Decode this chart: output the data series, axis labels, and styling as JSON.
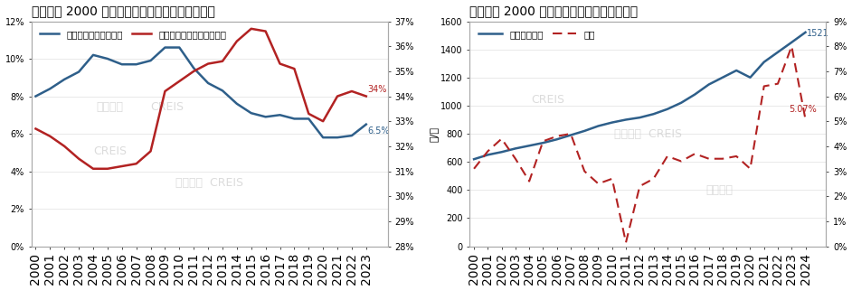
{
  "chart1": {
    "title": "图：美国 2000 年以来租赁住房空置率及租赁占比",
    "years": [
      2000,
      2001,
      2002,
      2003,
      2004,
      2005,
      2006,
      2007,
      2008,
      2009,
      2010,
      2011,
      2012,
      2013,
      2014,
      2015,
      2016,
      2017,
      2018,
      2019,
      2020,
      2021,
      2022,
      2023
    ],
    "vacancy": [
      8.0,
      8.4,
      8.9,
      9.3,
      10.2,
      10.0,
      9.7,
      9.7,
      9.9,
      10.6,
      10.6,
      9.5,
      8.7,
      8.3,
      7.6,
      7.1,
      6.9,
      7.0,
      6.8,
      6.8,
      5.8,
      5.8,
      5.9,
      6.5
    ],
    "ratio": [
      32.7,
      32.4,
      32.0,
      31.5,
      31.1,
      31.1,
      31.2,
      31.3,
      31.8,
      34.2,
      34.6,
      35.0,
      35.3,
      35.4,
      36.2,
      36.7,
      36.6,
      35.3,
      35.1,
      33.3,
      33.0,
      34.0,
      34.2,
      34.0
    ],
    "vacancy_color": "#2e5f8a",
    "ratio_color": "#b22222",
    "annotation_vacancy": "6.5%",
    "annotation_ratio": "34%",
    "legend1": "租赁住房空置率（左）",
    "legend2": "租赁住房占住宅比例（右）"
  },
  "chart2": {
    "title": "图：美国 2000 年以来住房租赁租金平均价格",
    "years": [
      2000,
      2001,
      2002,
      2003,
      2004,
      2005,
      2006,
      2007,
      2008,
      2009,
      2010,
      2011,
      2012,
      2013,
      2014,
      2015,
      2016,
      2017,
      2018,
      2019,
      2020,
      2021,
      2022,
      2023,
      2024
    ],
    "price": [
      619,
      650,
      670,
      695,
      715,
      735,
      760,
      790,
      820,
      855,
      880,
      900,
      915,
      940,
      975,
      1020,
      1080,
      1150,
      1200,
      1250,
      1200,
      1310,
      1380,
      1450,
      1521
    ],
    "growth": [
      3.1,
      3.8,
      4.3,
      3.5,
      2.6,
      4.2,
      4.4,
      4.5,
      3.0,
      2.5,
      2.7,
      0.15,
      2.4,
      2.7,
      3.6,
      3.4,
      3.7,
      3.5,
      3.5,
      3.6,
      3.1,
      6.4,
      6.5,
      8.0,
      5.07
    ],
    "price_color": "#2e5f8a",
    "growth_color": "#b22222",
    "annotation_price": "1521",
    "annotation_growth": "5.07%",
    "legend1": "租金平均价格",
    "legend2": "增速",
    "ylabel_left": "元/月"
  }
}
